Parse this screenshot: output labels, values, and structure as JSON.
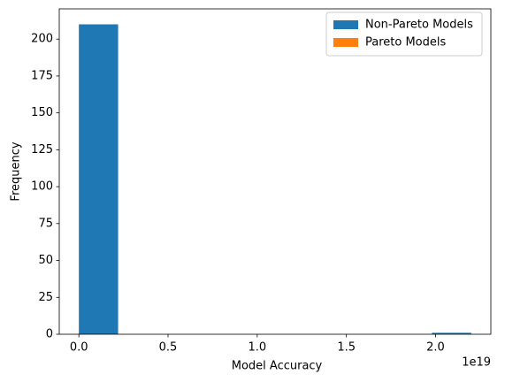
{
  "chart_data": {
    "type": "histogram",
    "x_label": "Model Accuracy",
    "y_label": "Frequency",
    "x_offset_label": "1e19",
    "bins": [
      0,
      0.22,
      0.44,
      0.66,
      0.88,
      1.1,
      1.32,
      1.54,
      1.76,
      1.98,
      2.2
    ],
    "series": [
      {
        "name": "Non-Pareto Models",
        "color": "#1f77b4",
        "values": [
          210,
          0,
          0,
          0,
          0,
          0,
          0,
          0,
          0,
          1
        ]
      },
      {
        "name": "Pareto Models",
        "color": "#ff7f0e",
        "values": [
          0,
          0,
          0,
          0,
          0,
          0,
          0,
          0,
          0,
          0
        ]
      }
    ],
    "xlim": [
      -0.11,
      2.31
    ],
    "ylim": [
      0,
      220.5
    ],
    "xticks": [
      {
        "value": 0,
        "label": "0.0"
      },
      0.5,
      {
        "value": 1,
        "label": "1.0"
      },
      1.5,
      {
        "value": 2,
        "label": "2.0"
      }
    ],
    "yticks": [
      0,
      25,
      50,
      75,
      100,
      125,
      150,
      175,
      200
    ],
    "legend": "upper right"
  }
}
